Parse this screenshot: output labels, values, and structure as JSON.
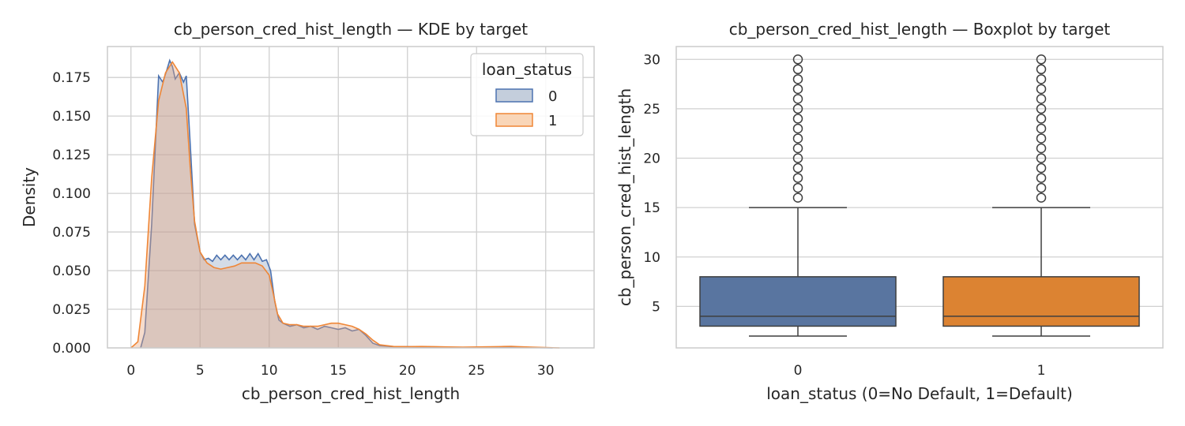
{
  "chart_data": [
    {
      "type": "area",
      "title": "cb_person_cred_hist_length — KDE by target",
      "xlabel": "cb_person_cred_hist_length",
      "ylabel": "Density",
      "xlim": [
        -1.7,
        33.5
      ],
      "ylim": [
        0,
        0.195
      ],
      "xticks": [
        "0",
        "5",
        "10",
        "15",
        "20",
        "25",
        "30"
      ],
      "yticks": [
        "0.000",
        "0.025",
        "0.050",
        "0.075",
        "0.100",
        "0.125",
        "0.150",
        "0.175"
      ],
      "grid": true,
      "legend": {
        "title": "loan_status",
        "placement": "top-right",
        "entries": [
          "0",
          "1"
        ]
      },
      "series": [
        {
          "name": "0",
          "color": "#4c72b0",
          "fill": "#c4cedc",
          "x": [
            0.7,
            1.0,
            1.5,
            2.0,
            2.3,
            2.6,
            2.8,
            3.0,
            3.2,
            3.5,
            3.8,
            4.0,
            4.3,
            4.6,
            5.0,
            5.3,
            5.6,
            5.9,
            6.2,
            6.5,
            6.8,
            7.1,
            7.4,
            7.7,
            8.0,
            8.3,
            8.6,
            8.9,
            9.2,
            9.5,
            9.8,
            10.1,
            10.4,
            10.7,
            11.0,
            11.5,
            12.0,
            12.5,
            13.0,
            13.5,
            14.0,
            14.5,
            15.0,
            15.5,
            16.0,
            16.5,
            17.0,
            17.5,
            18.0,
            19.0,
            20.0,
            21.0,
            22.0,
            23.0,
            24.0,
            25.0,
            26.0,
            27.0,
            28.0,
            29.0,
            30.0,
            30.5
          ],
          "values": [
            0.0,
            0.01,
            0.08,
            0.176,
            0.172,
            0.18,
            0.186,
            0.182,
            0.174,
            0.178,
            0.172,
            0.176,
            0.13,
            0.08,
            0.062,
            0.057,
            0.058,
            0.056,
            0.06,
            0.057,
            0.06,
            0.057,
            0.06,
            0.057,
            0.06,
            0.057,
            0.061,
            0.057,
            0.061,
            0.056,
            0.057,
            0.05,
            0.03,
            0.018,
            0.016,
            0.014,
            0.015,
            0.013,
            0.014,
            0.012,
            0.014,
            0.013,
            0.012,
            0.013,
            0.011,
            0.012,
            0.008,
            0.003,
            0.0015,
            0.0008,
            0.0008,
            0.0006,
            0.0005,
            0.0004,
            0.0003,
            0.0003,
            0.0003,
            0.0004,
            0.0003,
            0.0002,
            0.0001,
            0.0
          ]
        },
        {
          "name": "1",
          "color": "#dd8452",
          "fill": "#f4d2b6",
          "x": [
            0.0,
            0.5,
            1.0,
            1.5,
            2.0,
            2.5,
            3.0,
            3.5,
            4.0,
            4.3,
            4.6,
            5.0,
            5.5,
            6.0,
            6.5,
            7.0,
            7.5,
            8.0,
            8.5,
            9.0,
            9.5,
            10.0,
            10.3,
            10.6,
            11.0,
            11.5,
            12.0,
            12.5,
            13.0,
            13.5,
            14.0,
            14.5,
            15.0,
            15.5,
            16.0,
            16.5,
            17.0,
            17.5,
            18.0,
            19.0,
            20.0,
            21.0,
            22.0,
            23.0,
            24.0,
            25.0,
            26.0,
            27.0,
            27.5,
            28.0,
            29.0,
            30.0,
            31.0
          ],
          "values": [
            0.0,
            0.004,
            0.04,
            0.11,
            0.16,
            0.178,
            0.185,
            0.178,
            0.155,
            0.115,
            0.082,
            0.062,
            0.055,
            0.052,
            0.051,
            0.052,
            0.053,
            0.055,
            0.055,
            0.055,
            0.053,
            0.047,
            0.035,
            0.022,
            0.016,
            0.015,
            0.015,
            0.014,
            0.014,
            0.014,
            0.015,
            0.016,
            0.016,
            0.015,
            0.014,
            0.012,
            0.009,
            0.005,
            0.002,
            0.0009,
            0.0008,
            0.0009,
            0.0008,
            0.0006,
            0.0005,
            0.0006,
            0.0007,
            0.0009,
            0.001,
            0.0008,
            0.0005,
            0.0002,
            0.0
          ]
        }
      ]
    },
    {
      "type": "box",
      "title": "cb_person_cred_hist_length — Boxplot by target",
      "xlabel": "loan_status (0=No Default, 1=Default)",
      "ylabel": "cb_person_cred_hist_length",
      "ylim": [
        0.8,
        31.3
      ],
      "yticks": [
        "5",
        "10",
        "15",
        "20",
        "25",
        "30"
      ],
      "grid": true,
      "categories": [
        "0",
        "1"
      ],
      "boxes": [
        {
          "name": "0",
          "color": "#5975a0",
          "min": 2,
          "q1": 3,
          "median": 4,
          "q3": 8,
          "max": 15,
          "outliers": [
            16,
            17,
            18,
            19,
            20,
            21,
            22,
            23,
            24,
            25,
            26,
            27,
            28,
            29,
            30
          ]
        },
        {
          "name": "1",
          "color": "#dc8332",
          "min": 2,
          "q1": 3,
          "median": 4,
          "q3": 8,
          "max": 15,
          "outliers": [
            16,
            17,
            18,
            19,
            20,
            21,
            22,
            23,
            24,
            25,
            26,
            27,
            28,
            29,
            30
          ]
        }
      ]
    }
  ]
}
